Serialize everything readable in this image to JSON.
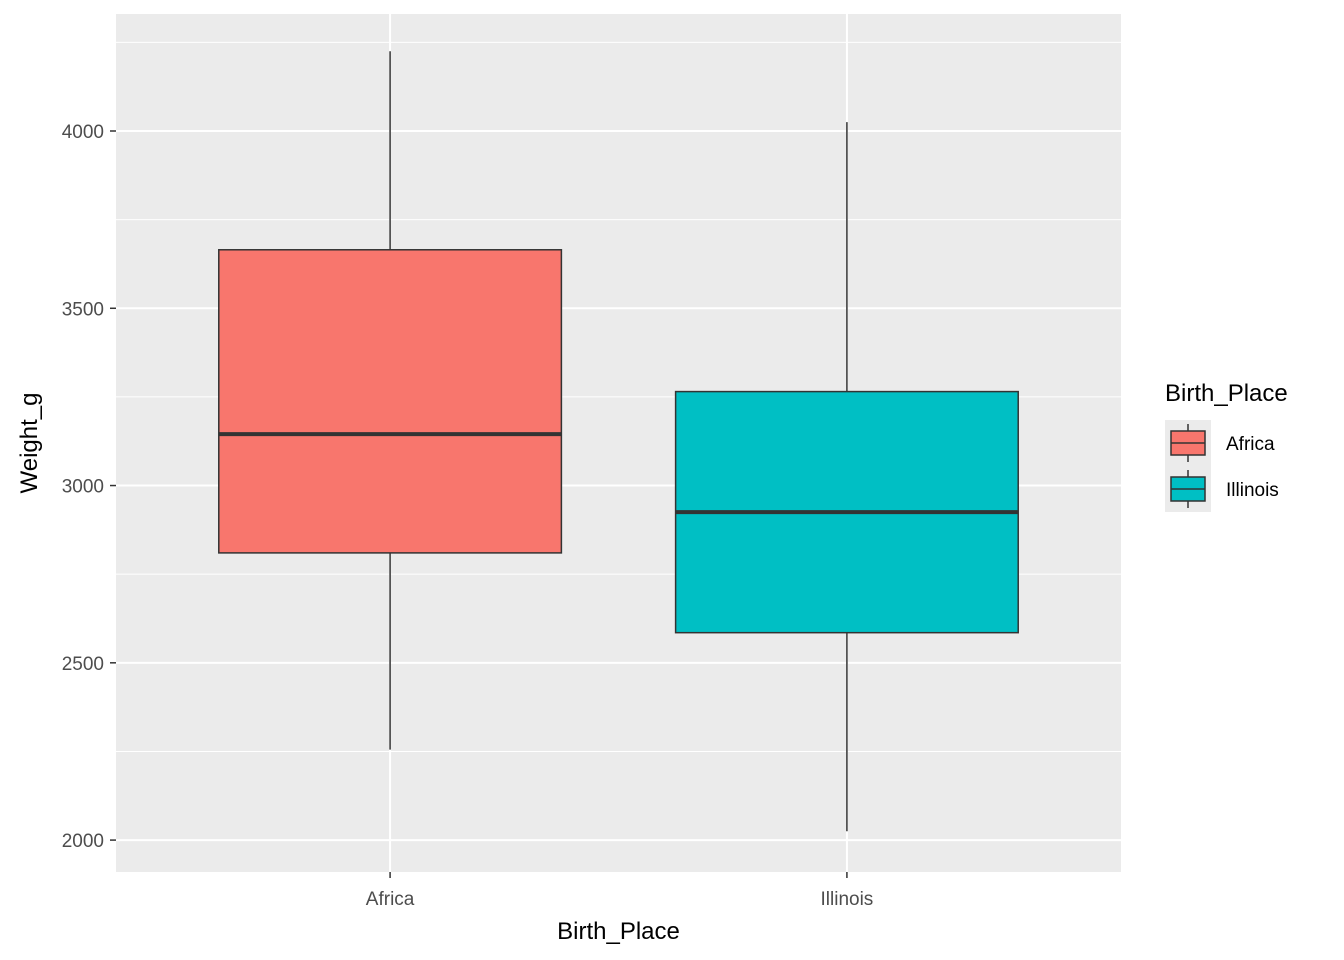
{
  "chart_data": {
    "type": "boxplot",
    "title": "",
    "xlabel": "Birth_Place",
    "ylabel": "Weight_g",
    "ylim": [
      1910,
      4330
    ],
    "y_ticks": [
      2000,
      2500,
      3000,
      3500,
      4000
    ],
    "y_tick_labels": [
      "2000",
      "2500",
      "3000",
      "3500",
      "4000"
    ],
    "categories": [
      "Africa",
      "Illinois"
    ],
    "grid": true,
    "legend": {
      "title": "Birth_Place",
      "position": "right",
      "entries": [
        "Africa",
        "Illinois"
      ]
    },
    "series": [
      {
        "name": "Africa",
        "color": "#F8766D",
        "min": 2255,
        "q1": 2810,
        "median": 3145,
        "q3": 3665,
        "max": 4225
      },
      {
        "name": "Illinois",
        "color": "#00BFC4",
        "min": 2025,
        "q1": 2585,
        "median": 2925,
        "q3": 3265,
        "max": 4025
      }
    ],
    "colors": {
      "panel_background": "#EBEBEB",
      "grid": "#FFFFFF",
      "box_outline": "#333333"
    }
  }
}
